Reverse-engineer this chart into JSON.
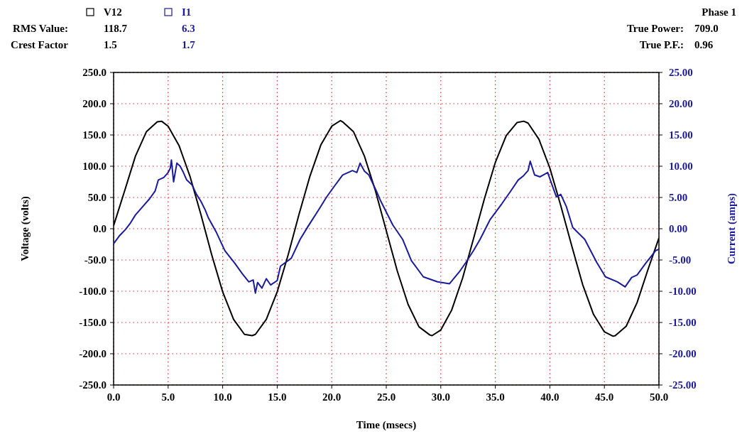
{
  "chart_data": {
    "type": "line",
    "xlabel": "Time (msecs)",
    "ylabel": "Voltage (volts)",
    "y2label": "Current (amps)",
    "annotations": [
      "RMS Value:",
      "118.7",
      "6.3",
      "Crest Factor",
      "1.5",
      "1.7",
      "Phase 1",
      "True Power:",
      "709.0",
      "True P.F.:",
      "0.96"
    ],
    "xlim": [
      0,
      50
    ],
    "xticks": [
      {
        "value": 0,
        "label": "0.0"
      },
      {
        "value": 5,
        "label": "5.0"
      },
      {
        "value": 10,
        "label": "10.0"
      },
      {
        "value": 15,
        "label": "15.0"
      },
      {
        "value": 20,
        "label": "20.0"
      },
      {
        "value": 25,
        "label": "25.0"
      },
      {
        "value": 30,
        "label": "30.0"
      },
      {
        "value": 35,
        "label": "35.0"
      },
      {
        "value": 40,
        "label": "40.0"
      },
      {
        "value": 45,
        "label": "45.0"
      },
      {
        "value": 50,
        "label": "50.0"
      }
    ],
    "ylim": [
      -250,
      250
    ],
    "yticks": [
      {
        "value": -250,
        "label": "-250.0"
      },
      {
        "value": -200,
        "label": "-200.0"
      },
      {
        "value": -150,
        "label": "-150.0"
      },
      {
        "value": -100,
        "label": "-100.0"
      },
      {
        "value": -50,
        "label": "-50.0"
      },
      {
        "value": 0,
        "label": "0.0"
      },
      {
        "value": 50,
        "label": "50.0"
      },
      {
        "value": 100,
        "label": "100.0"
      },
      {
        "value": 150,
        "label": "150.0"
      },
      {
        "value": 200,
        "label": "200.0"
      },
      {
        "value": 250,
        "label": "250.0"
      }
    ],
    "y2lim": [
      -25,
      25
    ],
    "y2ticks": [
      {
        "value": -25,
        "label": "-25.00"
      },
      {
        "value": -20,
        "label": "-20.00"
      },
      {
        "value": -15,
        "label": "-15.00"
      },
      {
        "value": -10,
        "label": "-10.00"
      },
      {
        "value": -5,
        "label": "-5.00"
      },
      {
        "value": 0,
        "label": "0.00"
      },
      {
        "value": 5,
        "label": "5.00"
      },
      {
        "value": 10,
        "label": "10.00"
      },
      {
        "value": 15,
        "label": "15.00"
      },
      {
        "value": 20,
        "label": "20.00"
      },
      {
        "value": 25,
        "label": "25.00"
      }
    ],
    "grid": true,
    "legend": "top left",
    "marker": "none",
    "line_style": "solid",
    "series": [
      {
        "name": "V12",
        "color": "#000000",
        "x": [
          0,
          1,
          2,
          3,
          4,
          4.4,
          5,
          6,
          7,
          8,
          9,
          10,
          11,
          12,
          12.7,
          13,
          14,
          15,
          16,
          17,
          18,
          19,
          20,
          20.8,
          21,
          22,
          23,
          24,
          25,
          26,
          27,
          28,
          29,
          29.2,
          30,
          31,
          32,
          33,
          34,
          35,
          36,
          37,
          37.6,
          38,
          39,
          40,
          41,
          42,
          43,
          44,
          45,
          45.8,
          46,
          47,
          48,
          49,
          50
        ],
        "values": [
          5,
          60,
          116,
          155,
          171,
          172,
          164,
          133,
          84,
          23,
          -42,
          -101,
          -145,
          -169,
          -171,
          -169,
          -145,
          -101,
          -42,
          23,
          84,
          134,
          164,
          173,
          171,
          155,
          116,
          61,
          -3,
          -67,
          -121,
          -157,
          -170,
          -171,
          -162,
          -130,
          -79,
          -16,
          48,
          106,
          149,
          170,
          172,
          169,
          143,
          97,
          37,
          -27,
          -89,
          -137,
          -165,
          -172,
          -171,
          -156,
          -118,
          -65,
          -15
        ]
      },
      {
        "name": "I1",
        "color": "#1a1a9c",
        "axis": "y2",
        "x": [
          0,
          0.5,
          1.1,
          1.5,
          2.0,
          2.6,
          3.3,
          3.8,
          4.1,
          4.6,
          5.0,
          5.2,
          5.3,
          5.5,
          5.8,
          6.1,
          6.4,
          6.7,
          7.2,
          7.6,
          8.0,
          8.4,
          8.7,
          9.4,
          10.2,
          11.1,
          11.8,
          12.4,
          12.8,
          13.0,
          13.2,
          13.6,
          14.0,
          14.4,
          15.0,
          15.3,
          16.3,
          17.1,
          17.8,
          18.9,
          19.5,
          20.2,
          21.0,
          21.9,
          22.3,
          22.6,
          23.0,
          23.4,
          24.1,
          24.5,
          25.6,
          26.5,
          27.3,
          28.4,
          29.7,
          30.8,
          31.7,
          32.3,
          33.0,
          33.6,
          34.5,
          35.6,
          36.4,
          37.1,
          37.6,
          38.0,
          38.2,
          38.6,
          39.1,
          39.8,
          40.2,
          40.6,
          41.0,
          41.5,
          42.1,
          43.2,
          44.3,
          45.1,
          46.2,
          46.9,
          47.5,
          48.0,
          48.8,
          49.7,
          50
        ],
        "values": [
          -2.4,
          -1.2,
          -0.1,
          0.8,
          2.2,
          3.4,
          4.8,
          6.0,
          7.8,
          8.2,
          9.0,
          9.7,
          11.0,
          7.5,
          10.5,
          10.0,
          9.0,
          7.8,
          7.0,
          5.5,
          4.4,
          3.0,
          1.7,
          -0.5,
          -3.5,
          -5.5,
          -7.2,
          -8.5,
          -8.2,
          -10.3,
          -8.6,
          -9.5,
          -8.0,
          -9.0,
          -8.3,
          -6.0,
          -4.7,
          -1.7,
          0.3,
          3.3,
          5.0,
          6.7,
          8.6,
          9.3,
          9.0,
          10.5,
          9.2,
          8.6,
          6.0,
          4.4,
          0.6,
          -1.7,
          -5.1,
          -7.7,
          -8.5,
          -8.8,
          -6.9,
          -5.4,
          -3.5,
          -1.7,
          1.4,
          4.0,
          6.0,
          7.8,
          8.5,
          9.3,
          10.8,
          8.6,
          8.3,
          9.0,
          7.0,
          5.1,
          5.5,
          3.6,
          0.2,
          -1.7,
          -5.4,
          -7.7,
          -8.5,
          -9.3,
          -7.8,
          -7.4,
          -5.5,
          -3.5,
          -3.3
        ]
      }
    ]
  }
}
